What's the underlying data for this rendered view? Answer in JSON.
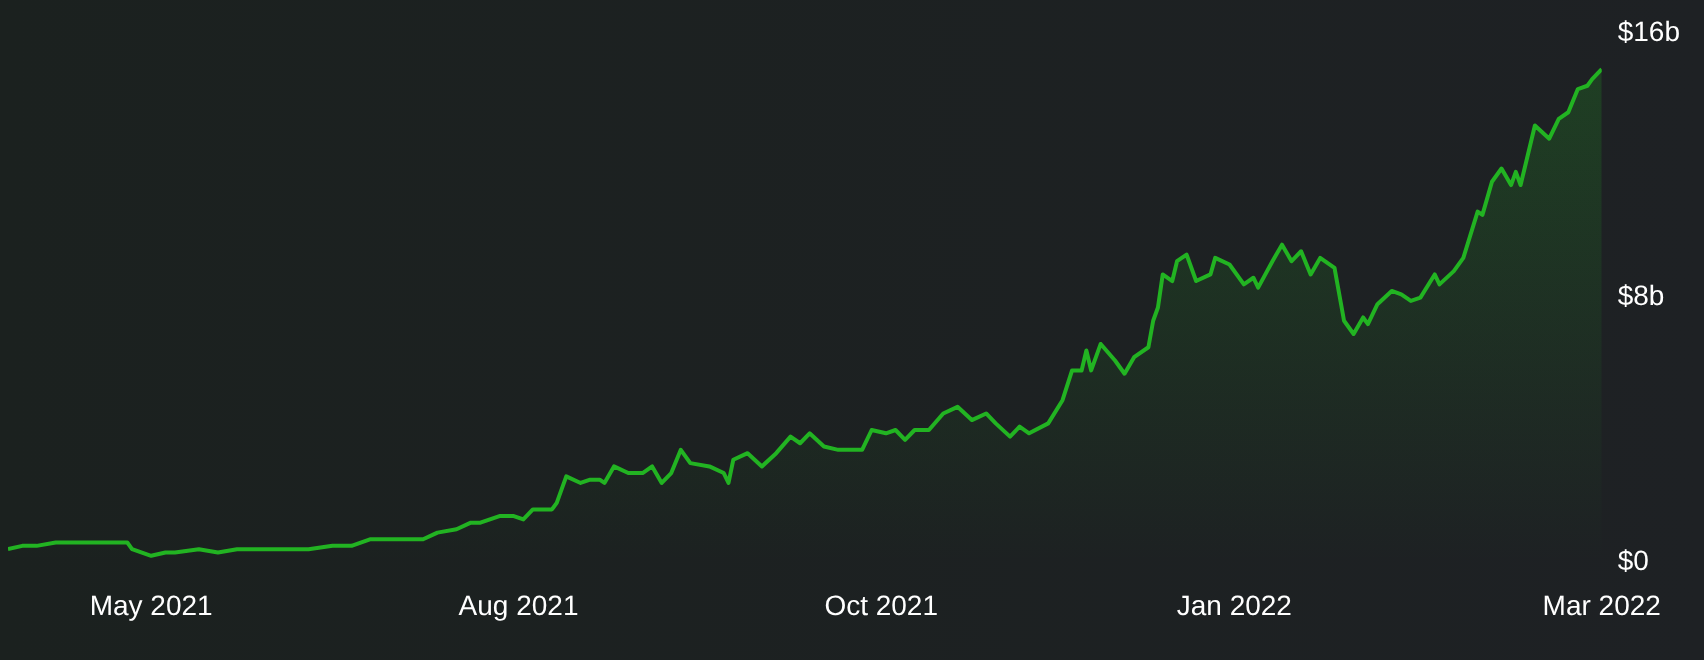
{
  "chart_data": {
    "type": "area",
    "x": [
      "2021-04-20",
      "2021-04-23",
      "2021-04-26",
      "2021-04-30",
      "2021-05-05",
      "2021-05-09",
      "2021-05-13",
      "2021-05-15",
      "2021-05-16",
      "2021-05-20",
      "2021-05-23",
      "2021-05-25",
      "2021-05-30",
      "2021-06-03",
      "2021-06-07",
      "2021-06-11",
      "2021-06-15",
      "2021-06-18",
      "2021-06-22",
      "2021-06-27",
      "2021-07-01",
      "2021-07-05",
      "2021-07-09",
      "2021-07-14",
      "2021-07-16",
      "2021-07-19",
      "2021-07-23",
      "2021-07-26",
      "2021-07-28",
      "2021-08-01",
      "2021-08-04",
      "2021-08-06",
      "2021-08-08",
      "2021-08-12",
      "2021-08-13",
      "2021-08-15",
      "2021-08-18",
      "2021-08-20",
      "2021-08-22",
      "2021-08-23",
      "2021-08-25",
      "2021-08-28",
      "2021-08-31",
      "2021-09-02",
      "2021-09-04",
      "2021-09-06",
      "2021-09-08",
      "2021-09-10",
      "2021-09-14",
      "2021-09-17",
      "2021-09-18",
      "2021-09-19",
      "2021-09-22",
      "2021-09-25",
      "2021-09-28",
      "2021-10-01",
      "2021-10-03",
      "2021-10-05",
      "2021-10-08",
      "2021-10-11",
      "2021-10-16",
      "2021-10-18",
      "2021-10-21",
      "2021-10-23",
      "2021-10-25",
      "2021-10-27",
      "2021-10-30",
      "2021-11-02",
      "2021-11-05",
      "2021-11-08",
      "2021-11-11",
      "2021-11-13",
      "2021-11-16",
      "2021-11-18",
      "2021-11-20",
      "2021-11-24",
      "2021-11-27",
      "2021-11-29",
      "2021-12-01",
      "2021-12-02",
      "2021-12-03",
      "2021-12-05",
      "2021-12-08",
      "2021-12-10",
      "2021-12-12",
      "2021-12-15",
      "2021-12-16",
      "2021-12-17",
      "2021-12-18",
      "2021-12-20",
      "2021-12-21",
      "2021-12-23",
      "2021-12-25",
      "2021-12-28",
      "2021-12-29",
      "2022-01-01",
      "2022-01-04",
      "2022-01-06",
      "2022-01-07",
      "2022-01-10",
      "2022-01-12",
      "2022-01-14",
      "2022-01-16",
      "2022-01-18",
      "2022-01-20",
      "2022-01-23",
      "2022-01-25",
      "2022-01-27",
      "2022-01-29",
      "2022-01-30",
      "2022-02-01",
      "2022-02-04",
      "2022-02-06",
      "2022-02-08",
      "2022-02-10",
      "2022-02-13",
      "2022-02-14",
      "2022-02-17",
      "2022-02-19",
      "2022-02-22",
      "2022-02-23",
      "2022-02-25",
      "2022-02-27",
      "2022-03-01",
      "2022-03-02",
      "2022-03-03",
      "2022-03-06",
      "2022-03-09",
      "2022-03-11",
      "2022-03-13",
      "2022-03-15",
      "2022-03-17",
      "2022-03-18",
      "2022-03-20"
    ],
    "series": [
      {
        "color": "#22b322",
        "values": [
          0.4,
          0.5,
          0.5,
          0.6,
          0.6,
          0.6,
          0.6,
          0.6,
          0.4,
          0.2,
          0.3,
          0.3,
          0.4,
          0.3,
          0.4,
          0.4,
          0.4,
          0.4,
          0.4,
          0.5,
          0.5,
          0.7,
          0.7,
          0.7,
          0.7,
          0.9,
          1.0,
          1.2,
          1.2,
          1.4,
          1.4,
          1.3,
          1.6,
          1.6,
          1.8,
          2.6,
          2.4,
          2.5,
          2.5,
          2.4,
          2.9,
          2.7,
          2.7,
          2.9,
          2.4,
          2.7,
          3.4,
          3.0,
          2.9,
          2.7,
          2.4,
          3.1,
          3.3,
          2.9,
          3.3,
          3.8,
          3.6,
          3.9,
          3.5,
          3.4,
          3.4,
          4.0,
          3.9,
          4.0,
          3.7,
          4.0,
          4.0,
          4.5,
          4.7,
          4.3,
          4.5,
          4.2,
          3.8,
          4.1,
          3.9,
          4.2,
          4.9,
          5.8,
          5.8,
          6.4,
          5.8,
          6.6,
          6.1,
          5.7,
          6.2,
          6.5,
          7.3,
          7.7,
          8.7,
          8.5,
          9.1,
          9.3,
          8.5,
          8.7,
          9.2,
          9.0,
          8.4,
          8.6,
          8.3,
          9.1,
          9.6,
          9.1,
          9.4,
          8.7,
          9.2,
          8.9,
          7.3,
          6.9,
          7.4,
          7.2,
          7.8,
          8.2,
          8.1,
          7.9,
          8.0,
          8.7,
          8.4,
          8.8,
          9.2,
          10.6,
          10.5,
          11.5,
          11.9,
          11.4,
          11.8,
          11.4,
          13.2,
          12.8,
          13.4,
          13.6,
          14.3,
          14.4,
          14.6,
          14.9
        ]
      }
    ],
    "xlim": [
      "2021-04-20",
      "2022-03-20"
    ],
    "xticks": [
      {
        "value": "2021-05-20",
        "label": "May 2021"
      },
      {
        "value": "2021-08-05",
        "label": "Aug 2021"
      },
      {
        "value": "2021-10-20",
        "label": "Oct 2021"
      },
      {
        "value": "2022-01-02",
        "label": "Jan 2022"
      },
      {
        "value": "2022-03-20",
        "label": "Mar 2022"
      }
    ],
    "ylim": [
      0,
      16
    ],
    "yticks": [
      {
        "value": 0,
        "label": "$0"
      },
      {
        "value": 8,
        "label": "$8b"
      },
      {
        "value": 16,
        "label": "$16b"
      }
    ],
    "grid": false,
    "legend": false,
    "marker": "none",
    "line_style": "solid"
  }
}
